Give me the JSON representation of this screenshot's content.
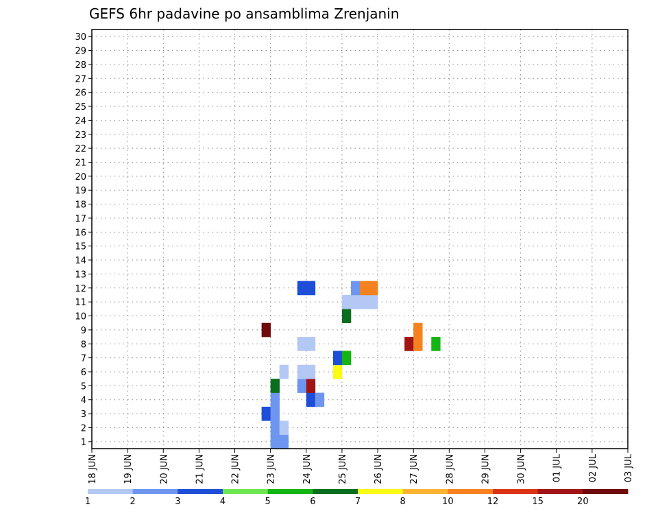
{
  "chart_data": {
    "type": "heatmap",
    "title": "GEFS 6hr padavine po ansamblima Zrenjanin",
    "xlabel": "",
    "ylabel": "",
    "x_ticks": [
      "18 JUN",
      "19 JUN",
      "20 JUN",
      "21 JUN",
      "22 JUN",
      "23 JUN",
      "24 JUN",
      "25 JUN",
      "26 JUN",
      "27 JUN",
      "28 JUN",
      "29 JUN",
      "30 JUN",
      "01 JUL",
      "02 JUL",
      "03 JUL"
    ],
    "y_ticks": [
      "1",
      "2",
      "3",
      "4",
      "5",
      "6",
      "7",
      "8",
      "9",
      "10",
      "11",
      "12",
      "13",
      "14",
      "15",
      "16",
      "17",
      "18",
      "19",
      "20",
      "21",
      "22",
      "23",
      "24",
      "25",
      "26",
      "27",
      "28",
      "29",
      "30"
    ],
    "grid": true,
    "legend": {
      "placement": "bottom",
      "thresholds": [
        "1",
        "2",
        "3",
        "4",
        "5",
        "6",
        "7",
        "8",
        "10",
        "12",
        "15",
        "20"
      ],
      "colors": [
        "#b4c8f5",
        "#6e96f0",
        "#1e4ed8",
        "#6ee650",
        "#14b414",
        "#0a6e1e",
        "#fafa14",
        "#fab432",
        "#f5821e",
        "#dc3214",
        "#a01414",
        "#6e0a0a"
      ]
    },
    "time_axis": {
      "start": "18 JUN 00Z",
      "end": "03 JUL 00Z",
      "step_hours": 6
    },
    "cells": [
      {
        "t": "2018-06-23 00",
        "m": 1,
        "v": 2
      },
      {
        "t": "2018-06-23 06",
        "m": 1,
        "v": 2
      },
      {
        "t": "2018-06-23 00",
        "m": 2,
        "v": 2
      },
      {
        "t": "2018-06-23 06",
        "m": 2,
        "v": 1
      },
      {
        "t": "2018-06-22 18",
        "m": 3,
        "v": 3
      },
      {
        "t": "2018-06-23 00",
        "m": 3,
        "v": 2
      },
      {
        "t": "2018-06-23 00",
        "m": 4,
        "v": 2
      },
      {
        "t": "2018-06-24 00",
        "m": 4,
        "v": 3
      },
      {
        "t": "2018-06-24 06",
        "m": 4,
        "v": 2
      },
      {
        "t": "2018-06-23 00",
        "m": 5,
        "v": 6
      },
      {
        "t": "2018-06-23 18",
        "m": 5,
        "v": 2
      },
      {
        "t": "2018-06-24 00",
        "m": 5,
        "v": 15
      },
      {
        "t": "2018-06-23 06",
        "m": 6,
        "v": 1
      },
      {
        "t": "2018-06-23 18",
        "m": 6,
        "v": 1
      },
      {
        "t": "2018-06-24 00",
        "m": 6,
        "v": 1
      },
      {
        "t": "2018-06-24 18",
        "m": 6,
        "v": 7
      },
      {
        "t": "2018-06-24 18",
        "m": 7,
        "v": 3
      },
      {
        "t": "2018-06-25 00",
        "m": 7,
        "v": 5
      },
      {
        "t": "2018-06-23 18",
        "m": 8,
        "v": 1
      },
      {
        "t": "2018-06-24 00",
        "m": 8,
        "v": 1
      },
      {
        "t": "2018-06-22 18",
        "m": 9,
        "v": 20
      },
      {
        "t": "2018-06-25 00",
        "m": 10,
        "v": 6
      },
      {
        "t": "2018-06-25 00",
        "m": 11,
        "v": 1
      },
      {
        "t": "2018-06-25 06",
        "m": 11,
        "v": 1
      },
      {
        "t": "2018-06-25 12",
        "m": 11,
        "v": 1
      },
      {
        "t": "2018-06-25 18",
        "m": 11,
        "v": 1
      },
      {
        "t": "2018-06-23 18",
        "m": 12,
        "v": 3
      },
      {
        "t": "2018-06-24 00",
        "m": 12,
        "v": 3
      },
      {
        "t": "2018-06-25 06",
        "m": 12,
        "v": 2
      },
      {
        "t": "2018-06-25 12",
        "m": 12,
        "v": 10
      },
      {
        "t": "2018-06-25 18",
        "m": 12,
        "v": 10
      },
      {
        "t": "2018-06-26 18",
        "m": 8,
        "v": 15
      },
      {
        "t": "2018-06-27 00",
        "m": 8,
        "v": 10
      },
      {
        "t": "2018-06-27 00",
        "m": 9,
        "v": 10
      },
      {
        "t": "2018-06-27 12",
        "m": 8,
        "v": 5
      }
    ]
  }
}
